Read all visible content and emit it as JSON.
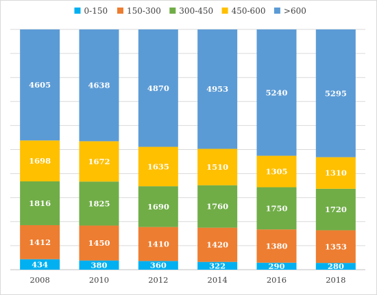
{
  "chart_data": {
    "type": "bar",
    "stacked": true,
    "normalized": true,
    "categories": [
      "2008",
      "2010",
      "2012",
      "2014",
      "2016",
      "2018"
    ],
    "series": [
      {
        "name": "0-150",
        "color": "#00b0f0",
        "values": [
          434,
          380,
          360,
          322,
          290,
          280
        ]
      },
      {
        "name": "150-300",
        "color": "#ed7d31",
        "values": [
          1412,
          1450,
          1410,
          1420,
          1380,
          1353
        ]
      },
      {
        "name": "300-450",
        "color": "#70ad47",
        "values": [
          1816,
          1825,
          1690,
          1760,
          1750,
          1720
        ]
      },
      {
        "name": "450-600",
        "color": "#ffc000",
        "values": [
          1698,
          1672,
          1635,
          1510,
          1305,
          1310
        ]
      },
      {
        "name": ">600",
        "color": "#5b9bd5",
        "values": [
          4605,
          4638,
          4870,
          4953,
          5240,
          5295
        ]
      }
    ],
    "title": "",
    "xlabel": "",
    "ylabel": "",
    "legend": "top",
    "grid": true
  }
}
